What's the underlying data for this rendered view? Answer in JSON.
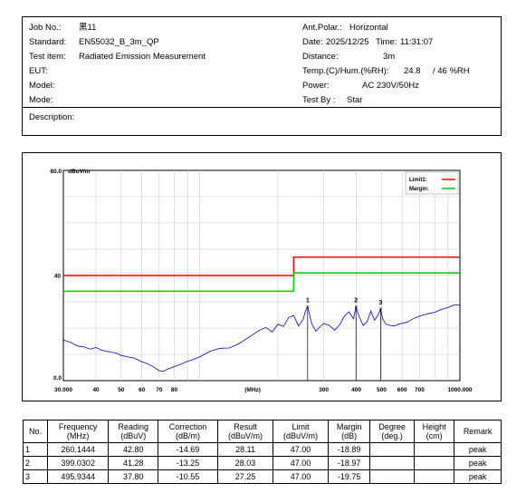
{
  "header": {
    "job_no_label": "Job No.:",
    "job_no": "黑11",
    "standard_label": "Standard:",
    "standard": "EN55032_B_3m_QP",
    "test_item_label": "Test item:",
    "test_item": "Radiated Emission Measurement",
    "eut_label": "EUT:",
    "model_label": "Model:",
    "mode_label": "Mode:",
    "ant_polar_label": "Ant.Polar.:",
    "ant_polar": "Horizontal",
    "date_label": "Date:",
    "date": "2025/12/25",
    "time_label": "Time:",
    "time": "11:31:07",
    "distance_label": "Distance:",
    "distance": "3m",
    "temp_label": "Temp.(C)/Hum.(%RH):",
    "temp": "24.8",
    "hum": "/ 46 %RH",
    "power_label": "Power:",
    "power": "AC 230V/50Hz",
    "test_by_label": "Test By :",
    "test_by": "Star",
    "description_label": "Description:"
  },
  "chart_data": {
    "type": "line",
    "xscale": "log",
    "xlim": [
      30,
      1000
    ],
    "ylim": [
      0,
      80
    ],
    "y_top_label": "80.0",
    "y_unit": "dBuV/m",
    "y_mid_label": "40",
    "y_bottom_label": "0.0",
    "x_unit_label": "(MHz)",
    "x_ticks": [
      {
        "v": 30,
        "label": "30.000"
      },
      {
        "v": 40,
        "label": "40"
      },
      {
        "v": 50,
        "label": "50"
      },
      {
        "v": 60,
        "label": "60"
      },
      {
        "v": 70,
        "label": "70"
      },
      {
        "v": 80,
        "label": "80"
      },
      {
        "v": 300,
        "label": "300"
      },
      {
        "v": 400,
        "label": "400"
      },
      {
        "v": 500,
        "label": "500"
      },
      {
        "v": 600,
        "label": "600"
      },
      {
        "v": 700,
        "label": "700"
      },
      {
        "v": 1000,
        "label": "1000.000"
      }
    ],
    "legend": [
      {
        "name": "Limit1:",
        "color": "#ff0000"
      },
      {
        "name": "Margin:",
        "color": "#00cc00"
      }
    ],
    "limit_line": {
      "color": "#ff0000",
      "points": [
        [
          30,
          40
        ],
        [
          230,
          40
        ],
        [
          230,
          47
        ],
        [
          1000,
          47
        ]
      ]
    },
    "margin_line": {
      "color": "#00cc00",
      "points": [
        [
          30,
          34
        ],
        [
          230,
          34
        ],
        [
          230,
          41
        ],
        [
          1000,
          41
        ]
      ]
    },
    "trace": {
      "color": "#0000cc",
      "x": [
        30,
        32,
        34,
        36,
        38,
        40,
        42,
        45,
        48,
        50,
        53,
        56,
        60,
        63,
        66,
        70,
        73,
        76,
        80,
        85,
        90,
        95,
        100,
        110,
        120,
        130,
        140,
        150,
        160,
        170,
        180,
        190,
        200,
        210,
        220,
        230,
        240,
        250,
        255,
        260,
        265,
        270,
        280,
        290,
        300,
        315,
        330,
        345,
        360,
        375,
        390,
        399,
        410,
        425,
        440,
        455,
        470,
        485,
        496,
        505,
        520,
        540,
        560,
        580,
        600,
        630,
        660,
        700,
        750,
        800,
        850,
        900,
        950,
        1000
      ],
      "y": [
        15.5,
        14.5,
        13.2,
        12.8,
        12.0,
        12.6,
        11.6,
        11.0,
        10.4,
        9.6,
        9.0,
        8.6,
        7.2,
        6.5,
        5.4,
        3.8,
        3.6,
        4.5,
        5.3,
        6.3,
        7.3,
        8.1,
        9.0,
        11.2,
        12.3,
        12.4,
        13.8,
        15.6,
        17.5,
        19.2,
        20.2,
        18.5,
        21.5,
        20.6,
        24.0,
        24.8,
        20.8,
        23.2,
        26.4,
        28.1,
        25.0,
        21.5,
        18.8,
        20.5,
        21.8,
        21.0,
        19.2,
        21.2,
        24.5,
        26.2,
        23.5,
        28.0,
        24.5,
        21.0,
        22.3,
        26.5,
        23.0,
        25.0,
        27.2,
        23.5,
        21.5,
        21.0,
        20.8,
        21.5,
        21.8,
        22.3,
        23.5,
        24.5,
        25.4,
        26.0,
        27.1,
        27.8,
        28.8,
        28.8
      ]
    },
    "markers": [
      {
        "label": "1",
        "x": 260.1444,
        "y": 28.11
      },
      {
        "label": "2",
        "x": 399.0302,
        "y": 28.03
      },
      {
        "label": "3",
        "x": 495.9344,
        "y": 27.25
      }
    ]
  },
  "table": {
    "headers": [
      "No.",
      "Frequency\n(MHz)",
      "Reading\n(dBuV)",
      "Correction\n(dB/m)",
      "Result\n(dBuV/m)",
      "Limit\n(dBuV/m)",
      "Margin\n(dB)",
      "Degree\n(deg.)",
      "Height\n(cm)",
      "Remark"
    ],
    "rows": [
      [
        "1",
        "260.1444",
        "42.80",
        "-14.69",
        "28.11",
        "47.00",
        "-18.89",
        "",
        "",
        "peak"
      ],
      [
        "2",
        "399.0302",
        "41.28",
        "-13.25",
        "28.03",
        "47.00",
        "-18.97",
        "",
        "",
        "peak"
      ],
      [
        "3",
        "495.9344",
        "37.80",
        "-10.55",
        "27.25",
        "47.00",
        "-19.75",
        "",
        "",
        "peak"
      ]
    ]
  }
}
